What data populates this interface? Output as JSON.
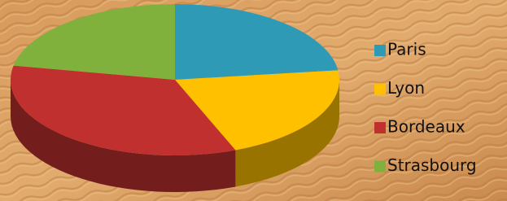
{
  "chart_data": {
    "type": "pie",
    "categories": [
      "Paris",
      "Lyon",
      "Bordeaux",
      "Strasbourg"
    ],
    "values": [
      23,
      21,
      34,
      22
    ],
    "colors": [
      "#2e9ab5",
      "#ffc000",
      "#c0302e",
      "#7fb13c"
    ],
    "legend": "right",
    "three_d": true
  }
}
